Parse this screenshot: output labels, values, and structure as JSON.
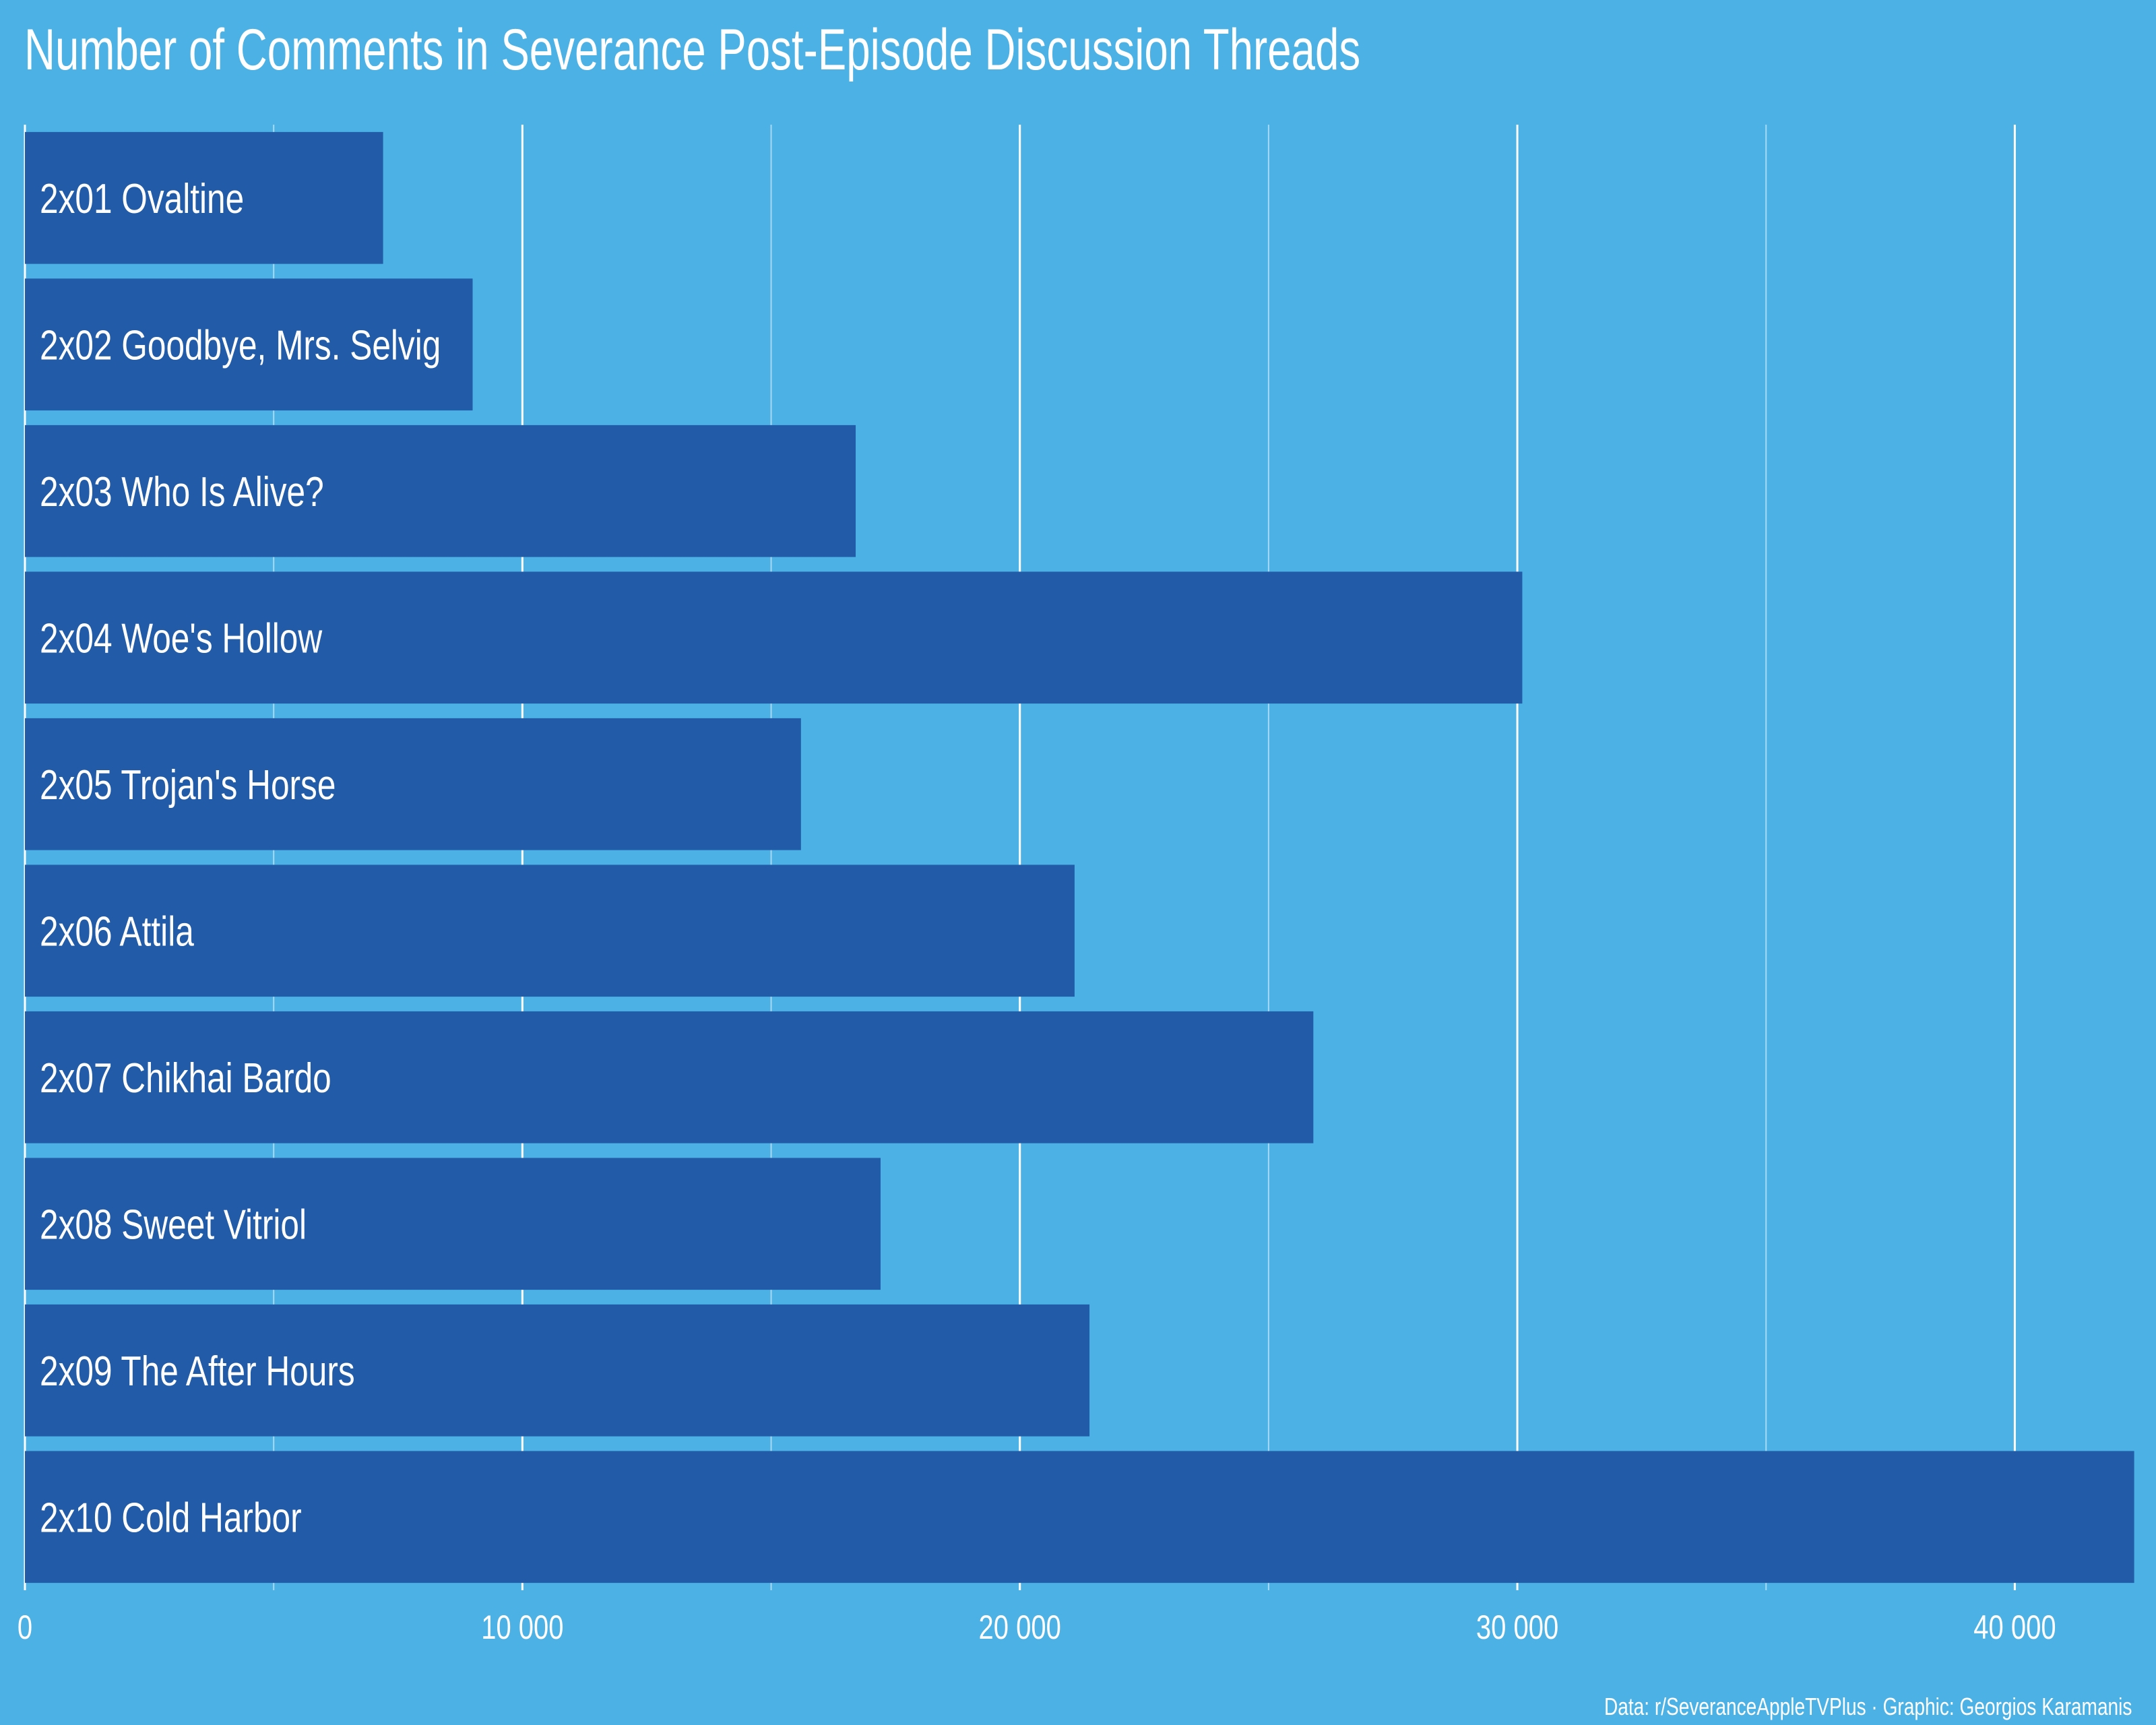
{
  "title": "Number of Comments in Severance Post-Episode Discussion Threads",
  "caption": "Data: r/SeveranceAppleTVPlus · Graphic: Georgios Karamanis",
  "colors": {
    "background": "#4cb2e6",
    "bar": "#225ca9",
    "text": "#ffffff",
    "grid": "#ffffff"
  },
  "chart_data": {
    "type": "bar",
    "orientation": "horizontal",
    "title": "Number of Comments in Severance Post-Episode Discussion Threads",
    "xlabel": "",
    "ylabel": "",
    "xlim": [
      0,
      42500
    ],
    "xticks": [
      0,
      10000,
      20000,
      30000,
      40000
    ],
    "xtick_labels": [
      "0",
      "10 000",
      "20 000",
      "30 000",
      "40 000"
    ],
    "grid": true,
    "categories": [
      "2x01 Ovaltine",
      "2x02 Goodbye, Mrs. Selvig",
      "2x03 Who Is Alive?",
      "2x04 Woe's Hollow",
      "2x05 Trojan's Horse",
      "2x06 Attila",
      "2x07 Chikhai Bardo",
      "2x08 Sweet Vitriol",
      "2x09 The After Hours",
      "2x10 Cold Harbor"
    ],
    "values": [
      7200,
      9000,
      16700,
      30100,
      15600,
      21100,
      25900,
      17200,
      21400,
      42400
    ]
  }
}
